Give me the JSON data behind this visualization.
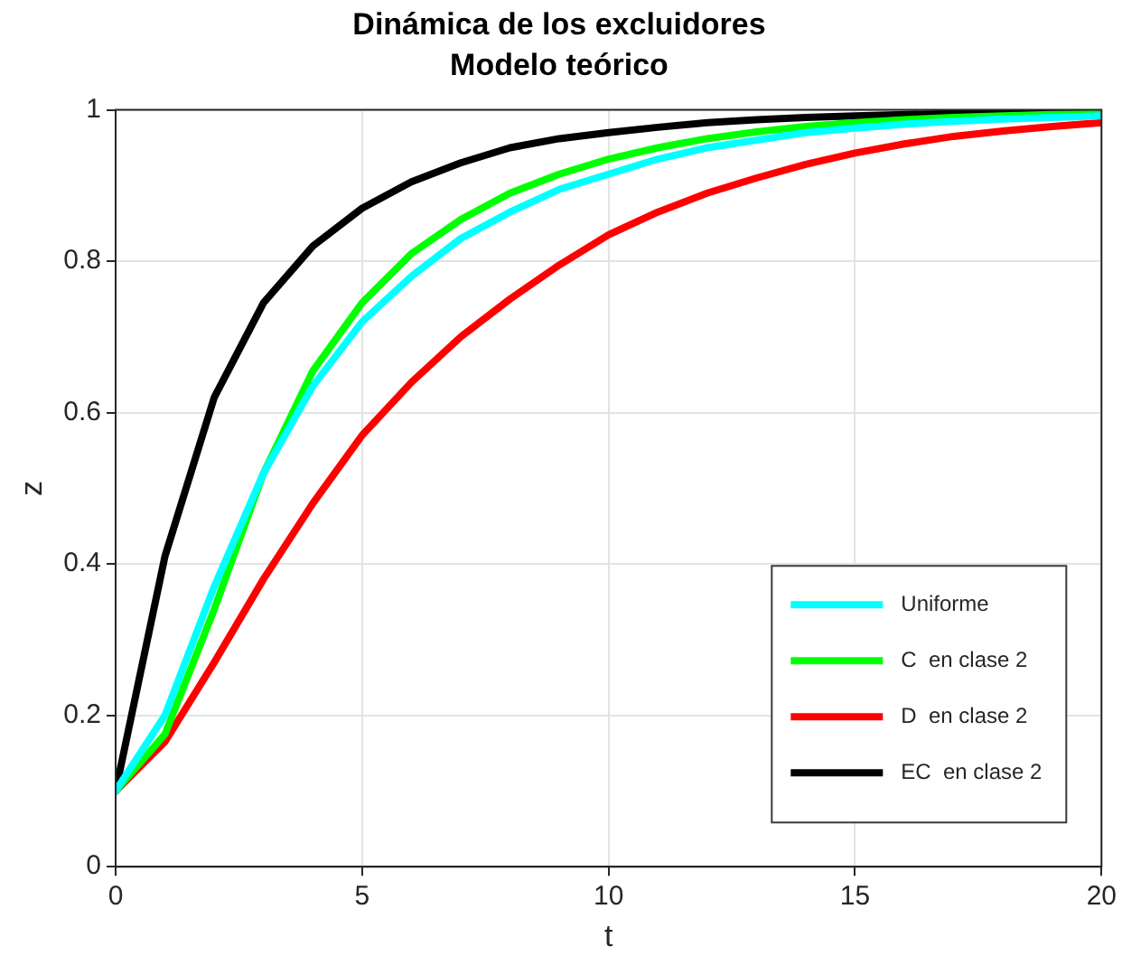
{
  "chart_data": {
    "type": "line",
    "title": "Dinámica de los excluidores",
    "subtitle": "Modelo teórico",
    "xlabel": "t",
    "ylabel": "z",
    "x": [
      0,
      1,
      2,
      3,
      4,
      5,
      6,
      7,
      8,
      9,
      10,
      11,
      12,
      13,
      14,
      15,
      16,
      17,
      18,
      19,
      20
    ],
    "series": [
      {
        "name": "Uniforme",
        "color": "#00ffff",
        "values": [
          0.1,
          0.2,
          0.37,
          0.52,
          0.635,
          0.72,
          0.78,
          0.83,
          0.865,
          0.895,
          0.915,
          0.935,
          0.95,
          0.96,
          0.97,
          0.976,
          0.981,
          0.985,
          0.988,
          0.99,
          0.992
        ]
      },
      {
        "name": "C  en clase 2",
        "color": "#00ff00",
        "values": [
          0.1,
          0.175,
          0.34,
          0.52,
          0.655,
          0.745,
          0.81,
          0.855,
          0.89,
          0.915,
          0.935,
          0.95,
          0.962,
          0.971,
          0.978,
          0.983,
          0.987,
          0.99,
          0.992,
          0.994,
          0.995
        ]
      },
      {
        "name": "D  en clase 2",
        "color": "#ff0000",
        "values": [
          0.1,
          0.165,
          0.27,
          0.38,
          0.48,
          0.57,
          0.64,
          0.7,
          0.75,
          0.795,
          0.835,
          0.865,
          0.89,
          0.91,
          0.928,
          0.943,
          0.955,
          0.965,
          0.972,
          0.978,
          0.983
        ]
      },
      {
        "name": "EC  en clase 2",
        "color": "#000000",
        "values": [
          0.1,
          0.41,
          0.62,
          0.745,
          0.82,
          0.87,
          0.905,
          0.93,
          0.95,
          0.962,
          0.97,
          0.977,
          0.983,
          0.987,
          0.99,
          0.992,
          0.994,
          0.995,
          0.996,
          0.997,
          0.998
        ]
      }
    ],
    "xlim": [
      0,
      20
    ],
    "xticks": [
      0,
      5,
      10,
      15,
      20
    ],
    "ylim": [
      0,
      1
    ],
    "yticks": [
      0,
      0.2,
      0.4,
      0.6,
      0.8,
      1
    ],
    "grid": true,
    "legend": "bottom right",
    "marker": "none",
    "line_style": "solid"
  }
}
